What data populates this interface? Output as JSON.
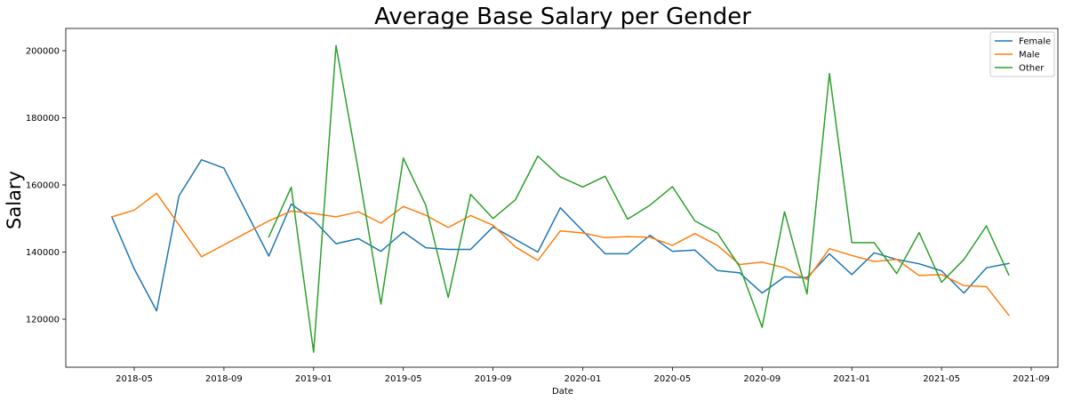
{
  "chart_data": {
    "type": "line",
    "title": "Average Base Salary per Gender",
    "xlabel": "Date",
    "ylabel": "Salary",
    "x_ticks": [
      "2018-05",
      "2018-09",
      "2019-01",
      "2019-05",
      "2019-09",
      "2020-01",
      "2020-05",
      "2020-09",
      "2021-01",
      "2021-05",
      "2021-09"
    ],
    "y_ticks": [
      120000,
      140000,
      160000,
      180000,
      200000
    ],
    "y_tick_labels": [
      "120000",
      "140000",
      "160000",
      "180000",
      "200000"
    ],
    "x_range": [
      "2018-02",
      "2021-09"
    ],
    "ylim": [
      107000,
      207000
    ],
    "grid": false,
    "legend_position": "top-right",
    "series": [
      {
        "name": "Female",
        "color": "#1f77b4",
        "points": [
          [
            "2018-04",
            150500
          ],
          [
            "2018-05",
            135000
          ],
          [
            "2018-06",
            122500
          ],
          [
            "2018-07",
            156800
          ],
          [
            "2018-08",
            167500
          ],
          [
            "2018-09",
            165000
          ],
          [
            "2018-11",
            138800
          ],
          [
            "2018-12",
            154300
          ],
          [
            "2019-01",
            149500
          ],
          [
            "2019-02",
            142500
          ],
          [
            "2019-03",
            144000
          ],
          [
            "2019-04",
            140200
          ],
          [
            "2019-05",
            146000
          ],
          [
            "2019-06",
            141300
          ],
          [
            "2019-07",
            140800
          ],
          [
            "2019-08",
            140800
          ],
          [
            "2019-09",
            147500
          ],
          [
            "2019-11",
            140000
          ],
          [
            "2019-12",
            153200
          ],
          [
            "2020-02",
            139500
          ],
          [
            "2020-03",
            139500
          ],
          [
            "2020-04",
            145000
          ],
          [
            "2020-05",
            140200
          ],
          [
            "2020-06",
            140600
          ],
          [
            "2020-07",
            134500
          ],
          [
            "2020-08",
            133800
          ],
          [
            "2020-09",
            127800
          ],
          [
            "2020-10",
            132600
          ],
          [
            "2020-11",
            132400
          ],
          [
            "2020-12",
            139500
          ],
          [
            "2021-01",
            133300
          ],
          [
            "2021-02",
            139800
          ],
          [
            "2021-03",
            137800
          ],
          [
            "2021-04",
            136500
          ],
          [
            "2021-05",
            134400
          ],
          [
            "2021-06",
            127800
          ],
          [
            "2021-07",
            135300
          ],
          [
            "2021-08",
            136600
          ]
        ]
      },
      {
        "name": "Male",
        "color": "#ff7f0e",
        "points": [
          [
            "2018-04",
            150500
          ],
          [
            "2018-05",
            152500
          ],
          [
            "2018-06",
            157500
          ],
          [
            "2018-08",
            138600
          ],
          [
            "2018-11",
            149300
          ],
          [
            "2018-12",
            152200
          ],
          [
            "2019-01",
            151500
          ],
          [
            "2019-02",
            150500
          ],
          [
            "2019-03",
            152000
          ],
          [
            "2019-04",
            148600
          ],
          [
            "2019-05",
            153600
          ],
          [
            "2019-06",
            151000
          ],
          [
            "2019-07",
            147300
          ],
          [
            "2019-08",
            150900
          ],
          [
            "2019-09",
            148000
          ],
          [
            "2019-10",
            141500
          ],
          [
            "2019-11",
            137500
          ],
          [
            "2019-12",
            146300
          ],
          [
            "2020-01",
            145700
          ],
          [
            "2020-02",
            144300
          ],
          [
            "2020-03",
            144600
          ],
          [
            "2020-04",
            144400
          ],
          [
            "2020-05",
            142000
          ],
          [
            "2020-06",
            145500
          ],
          [
            "2020-07",
            142000
          ],
          [
            "2020-08",
            136300
          ],
          [
            "2020-09",
            137000
          ],
          [
            "2020-10",
            135300
          ],
          [
            "2020-11",
            131800
          ],
          [
            "2020-12",
            141000
          ],
          [
            "2021-01",
            139000
          ],
          [
            "2021-02",
            137200
          ],
          [
            "2021-03",
            137800
          ],
          [
            "2021-04",
            133000
          ],
          [
            "2021-05",
            133300
          ],
          [
            "2021-06",
            130000
          ],
          [
            "2021-07",
            129700
          ],
          [
            "2021-08",
            121200
          ]
        ]
      },
      {
        "name": "Other",
        "color": "#2ca02c",
        "points": [
          [
            "2018-11",
            144500
          ],
          [
            "2018-12",
            159300
          ],
          [
            "2019-01",
            110200
          ],
          [
            "2019-02",
            201500
          ],
          [
            "2019-03",
            164000
          ],
          [
            "2019-04",
            124500
          ],
          [
            "2019-05",
            168000
          ],
          [
            "2019-06",
            154000
          ],
          [
            "2019-07",
            126500
          ],
          [
            "2019-08",
            157200
          ],
          [
            "2019-09",
            150000
          ],
          [
            "2019-10",
            155600
          ],
          [
            "2019-11",
            168600
          ],
          [
            "2019-12",
            162400
          ],
          [
            "2020-01",
            159400
          ],
          [
            "2020-02",
            162600
          ],
          [
            "2020-03",
            149800
          ],
          [
            "2020-04",
            154000
          ],
          [
            "2020-05",
            159500
          ],
          [
            "2020-06",
            149300
          ],
          [
            "2020-07",
            145700
          ],
          [
            "2020-08",
            135600
          ],
          [
            "2020-09",
            117600
          ],
          [
            "2020-10",
            152000
          ],
          [
            "2020-11",
            127500
          ],
          [
            "2020-12",
            193200
          ],
          [
            "2021-01",
            142800
          ],
          [
            "2021-02",
            142800
          ],
          [
            "2021-03",
            133600
          ],
          [
            "2021-04",
            145800
          ],
          [
            "2021-05",
            131000
          ],
          [
            "2021-06",
            137800
          ],
          [
            "2021-07",
            147800
          ],
          [
            "2021-08",
            133200
          ]
        ]
      }
    ]
  }
}
